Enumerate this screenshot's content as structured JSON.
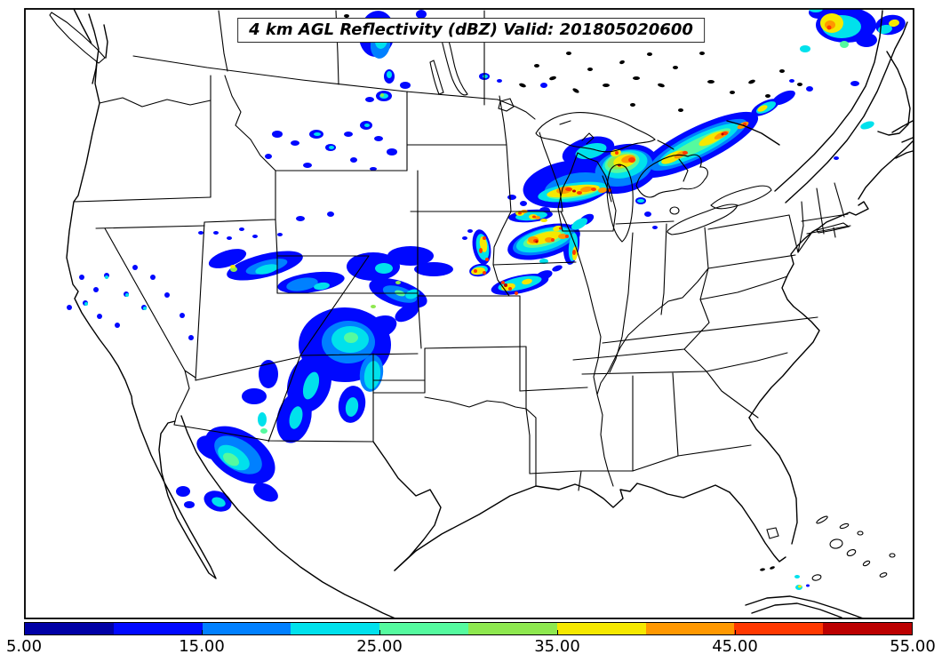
{
  "figure": {
    "title": "4 km AGL Reflectivity (dBZ) Valid: 201805020600",
    "variable": "Reflectivity",
    "units": "dBZ",
    "level": "4 km AGL",
    "valid_time": "201805020600"
  },
  "colorbar": {
    "min": 5,
    "max": 55,
    "tick_labels": [
      "5.00",
      "15.00",
      "25.00",
      "35.00",
      "45.00",
      "55.00"
    ],
    "tick_values": [
      5,
      15,
      25,
      35,
      45,
      55
    ],
    "segments": [
      {
        "dbz": "5-10",
        "color": "#0000a6"
      },
      {
        "dbz": "10-15",
        "color": "#0008ff"
      },
      {
        "dbz": "15-20",
        "color": "#0080ff"
      },
      {
        "dbz": "20-25",
        "color": "#00e1ec"
      },
      {
        "dbz": "25-30",
        "color": "#55fa9f"
      },
      {
        "dbz": "30-35",
        "color": "#8ee84f"
      },
      {
        "dbz": "35-40",
        "color": "#f5e800"
      },
      {
        "dbz": "40-45",
        "color": "#ff9800"
      },
      {
        "dbz": "45-50",
        "color": "#ff3800"
      },
      {
        "dbz": "50-55",
        "color": "#bc0000"
      }
    ]
  },
  "map": {
    "region": "Continental United States with southern Canada and northern Mexico, state and province boundaries",
    "echo_systems": [
      {
        "name": "Intermountain West / Four Corners stratiform area",
        "location": "Utah, Colorado, Arizona, New Mexico, Nevada",
        "intensity_dbz": "5-35"
      },
      {
        "name": "Upper Midwest and Great Lakes convective line",
        "location": "Nebraska/Iowa through Wisconsin, Upper Michigan, Lake Huron into southern Ontario",
        "intensity_dbz": "5-55"
      },
      {
        "name": "Scattered showers",
        "location": "Montana",
        "intensity_dbz": "5-30"
      },
      {
        "name": "Small cluster",
        "location": "Saskatchewan/Manitoba",
        "intensity_dbz": "5-25"
      },
      {
        "name": "Convective cluster",
        "location": "Southern Quebec",
        "intensity_dbz": "5-50"
      },
      {
        "name": "Isolated cells",
        "location": "Florida Straits",
        "intensity_dbz": "5-40"
      }
    ]
  }
}
